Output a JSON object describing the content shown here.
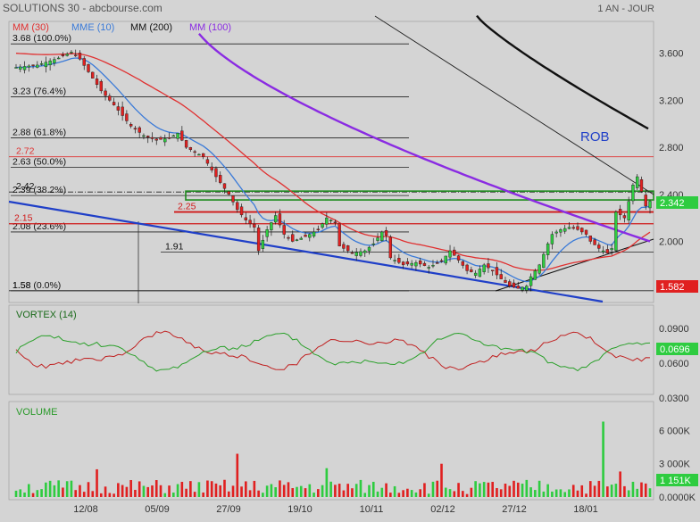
{
  "header": {
    "title": "SOLUTIONS 30 - abcbourse.com",
    "period": "1 AN - JOUR"
  },
  "legend": [
    {
      "label": "MM (30)",
      "color": "#e03030"
    },
    {
      "label": "MME (10)",
      "color": "#3a7ad8"
    },
    {
      "label": "MM (200)",
      "color": "#111111"
    },
    {
      "label": "MM (100)",
      "color": "#8a2be2"
    }
  ],
  "colors": {
    "up": "#2ecc40",
    "down": "#e02020",
    "ma30": "#e03030",
    "ema10": "#3a7ad8",
    "ma200": "#111111",
    "ma100": "#8a2be2",
    "support": "#1f3fc8",
    "vortex_pos": "#2aa02a",
    "vortex_neg": "#c02020",
    "badge_last": "#2ecc40",
    "badge_low": "#e02020"
  },
  "price_axis": {
    "ticks": [
      "3.600",
      "3.200",
      "2.800",
      "2.400",
      "2.000"
    ],
    "ylim": [
      1.48,
      3.78
    ]
  },
  "fibonacci": [
    {
      "level": 3.68,
      "label": "3.68 (100.0%)"
    },
    {
      "level": 3.23,
      "label": "3.23 (76.4%)"
    },
    {
      "level": 2.88,
      "label": "2.88 (61.8%)"
    },
    {
      "level": 2.63,
      "label": "2.63 (50.0%)"
    },
    {
      "level": 2.39,
      "label": "2.39 (38.2%)"
    },
    {
      "level": 2.08,
      "label": "2.08 (23.6%)"
    },
    {
      "level": 1.58,
      "label": "1.58 (0.0%)"
    }
  ],
  "levels": [
    {
      "label": "2.72",
      "value": 2.72
    },
    {
      "label": "2.42",
      "value": 2.42
    },
    {
      "label": "2.25",
      "value": 2.25
    },
    {
      "label": "2.15",
      "value": 2.15
    },
    {
      "label": "1.91",
      "value": 1.91
    },
    {
      "label": "1.58",
      "value": 1.58
    }
  ],
  "annotations": {
    "rob": "ROB",
    "last_price": "2.342",
    "low_price": "1.582"
  },
  "chart_data": [
    {
      "type": "candlestick",
      "title": "SOLUTIONS 30",
      "x_tick_labels": [
        "12/08",
        "05/09",
        "27/09",
        "19/10",
        "10/11",
        "02/12",
        "27/12",
        "18/01"
      ],
      "ylim": [
        1.48,
        3.78
      ],
      "last": 2.342,
      "low": 1.582,
      "series": [
        {
          "name": "MM (30)"
        },
        {
          "name": "MME (10)"
        },
        {
          "name": "MM (200)"
        },
        {
          "name": "MM (100)"
        }
      ],
      "close_anchors": [
        [
          0,
          3.48
        ],
        [
          5,
          3.5
        ],
        [
          10,
          3.56
        ],
        [
          13,
          3.61
        ],
        [
          15,
          3.55
        ],
        [
          20,
          3.28
        ],
        [
          23,
          3.16
        ],
        [
          27,
          2.98
        ],
        [
          30,
          2.9
        ],
        [
          33,
          2.86
        ],
        [
          36,
          2.88
        ],
        [
          38,
          2.92
        ],
        [
          40,
          2.8
        ],
        [
          44,
          2.72
        ],
        [
          47,
          2.55
        ],
        [
          50,
          2.4
        ],
        [
          52,
          2.27
        ],
        [
          54,
          2.18
        ],
        [
          56,
          2.12
        ],
        [
          57,
          1.92
        ],
        [
          59,
          2.1
        ],
        [
          61,
          2.22
        ],
        [
          63,
          2.06
        ],
        [
          65,
          2.0
        ],
        [
          68,
          2.04
        ],
        [
          71,
          2.1
        ],
        [
          73,
          2.2
        ],
        [
          75,
          2.16
        ],
        [
          76,
          1.96
        ],
        [
          79,
          1.9
        ],
        [
          82,
          1.92
        ],
        [
          84,
          1.98
        ],
        [
          86,
          2.08
        ],
        [
          87,
          2.05
        ],
        [
          88,
          1.86
        ],
        [
          91,
          1.8
        ],
        [
          94,
          1.82
        ],
        [
          97,
          1.78
        ],
        [
          100,
          1.83
        ],
        [
          102,
          1.92
        ],
        [
          104,
          1.84
        ],
        [
          106,
          1.75
        ],
        [
          108,
          1.73
        ],
        [
          110,
          1.8
        ],
        [
          112,
          1.75
        ],
        [
          114,
          1.68
        ],
        [
          116,
          1.62
        ],
        [
          118,
          1.6
        ],
        [
          120,
          1.62
        ],
        [
          121,
          1.7
        ],
        [
          123,
          1.8
        ],
        [
          125,
          1.98
        ],
        [
          126,
          2.06
        ],
        [
          128,
          2.1
        ],
        [
          130,
          2.12
        ],
        [
          132,
          2.1
        ],
        [
          134,
          2.06
        ],
        [
          135,
          2.0
        ],
        [
          137,
          1.94
        ],
        [
          139,
          1.9
        ],
        [
          140,
          1.94
        ],
        [
          141,
          2.25
        ],
        [
          143,
          2.2
        ],
        [
          145,
          2.48
        ],
        [
          146,
          2.55
        ],
        [
          148,
          2.3
        ],
        [
          149,
          2.342
        ]
      ]
    },
    {
      "type": "line",
      "title": "VORTEX (14)",
      "y_tick_labels": [
        "0.0900",
        "0.0600",
        "0.0300"
      ],
      "last": "0.0696",
      "series": [
        {
          "color": "#2aa02a"
        },
        {
          "color": "#c02020"
        }
      ]
    },
    {
      "type": "bar",
      "title": "VOLUME",
      "y_tick_labels": [
        "6 000K",
        "3 000K",
        "0.0000K"
      ],
      "last": "1 151K",
      "spikes": [
        [
          19,
          2.5
        ],
        [
          52,
          3.9
        ],
        [
          73,
          2.6
        ],
        [
          100,
          3.0
        ],
        [
          138,
          6.8
        ],
        [
          142,
          2.3
        ]
      ]
    }
  ]
}
